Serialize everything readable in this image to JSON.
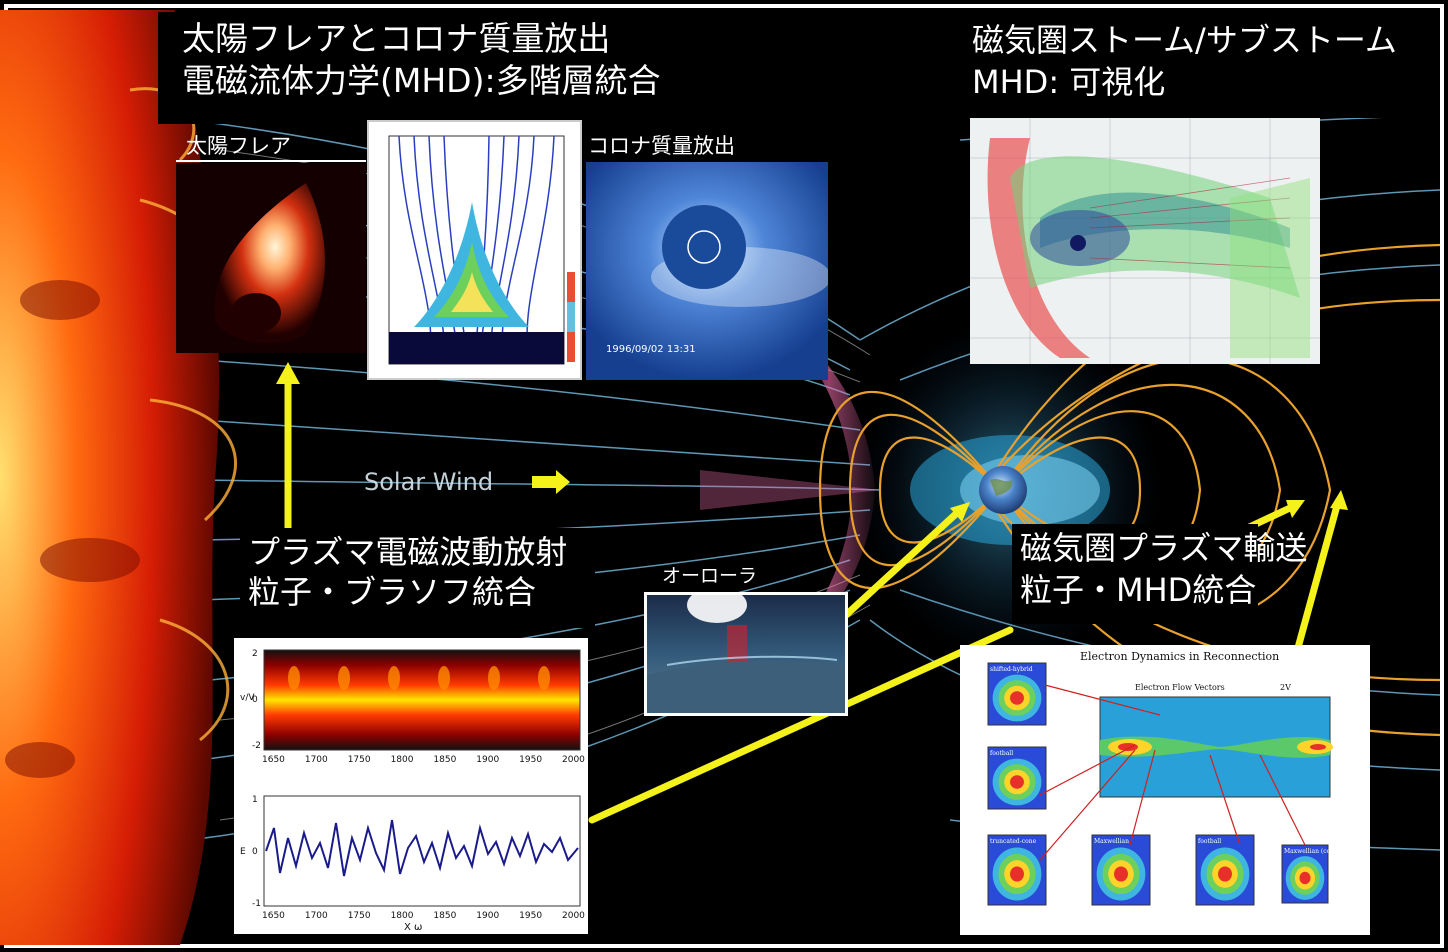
{
  "titles": {
    "solar_title_line1": "太陽フレアとコロナ質量放出",
    "solar_title_line2": "電磁流体力学(MHD):多階層統合",
    "mag_title_line1": "磁気圏ストーム/サブストーム",
    "mag_title_line2": "MHD: 可視化",
    "plasma_title_line1": "プラズマ電磁波動放射",
    "plasma_title_line2": "粒子・ブラソフ統合",
    "transport_title_line1": "磁気圏プラズマ輸送",
    "transport_title_line2": "粒子・MHD統合"
  },
  "labels": {
    "solar_flare": "太陽フレア",
    "cme": "コロナ質量放出",
    "aurora": "オーローラ",
    "solar_wind": "Solar Wind",
    "cme_timestamp": "1996/09/02 13:31",
    "electron_dynamics_title": "Electron Dynamics in Reconnection",
    "electron_flow_vectors": "Electron Flow Vectors",
    "flow_scale": "2V",
    "dist_labels": [
      "shifted-hybrid",
      "football",
      "truncated-cone",
      "Maxwellian",
      "football",
      "Maxwellian (cold)"
    ]
  },
  "wave_plot": {
    "x_ticks": [
      "1650",
      "1700",
      "1750",
      "1800",
      "1850",
      "1900",
      "1950",
      "2000"
    ],
    "x_label": "X ω",
    "top_y_ticks": [
      "2",
      "0",
      "-2"
    ],
    "bottom_y_ticks": [
      "1",
      "0",
      "-1"
    ],
    "top_y_label": "v/V",
    "bottom_y_label": "E"
  },
  "colors": {
    "arrow_yellow": "#f4f21a",
    "field_line_orange": "#e8a12c",
    "field_line_blue": "#6fb7e6",
    "sun_orange": "#ff5a0a",
    "magnetopause_pink": "#e96aa6"
  }
}
